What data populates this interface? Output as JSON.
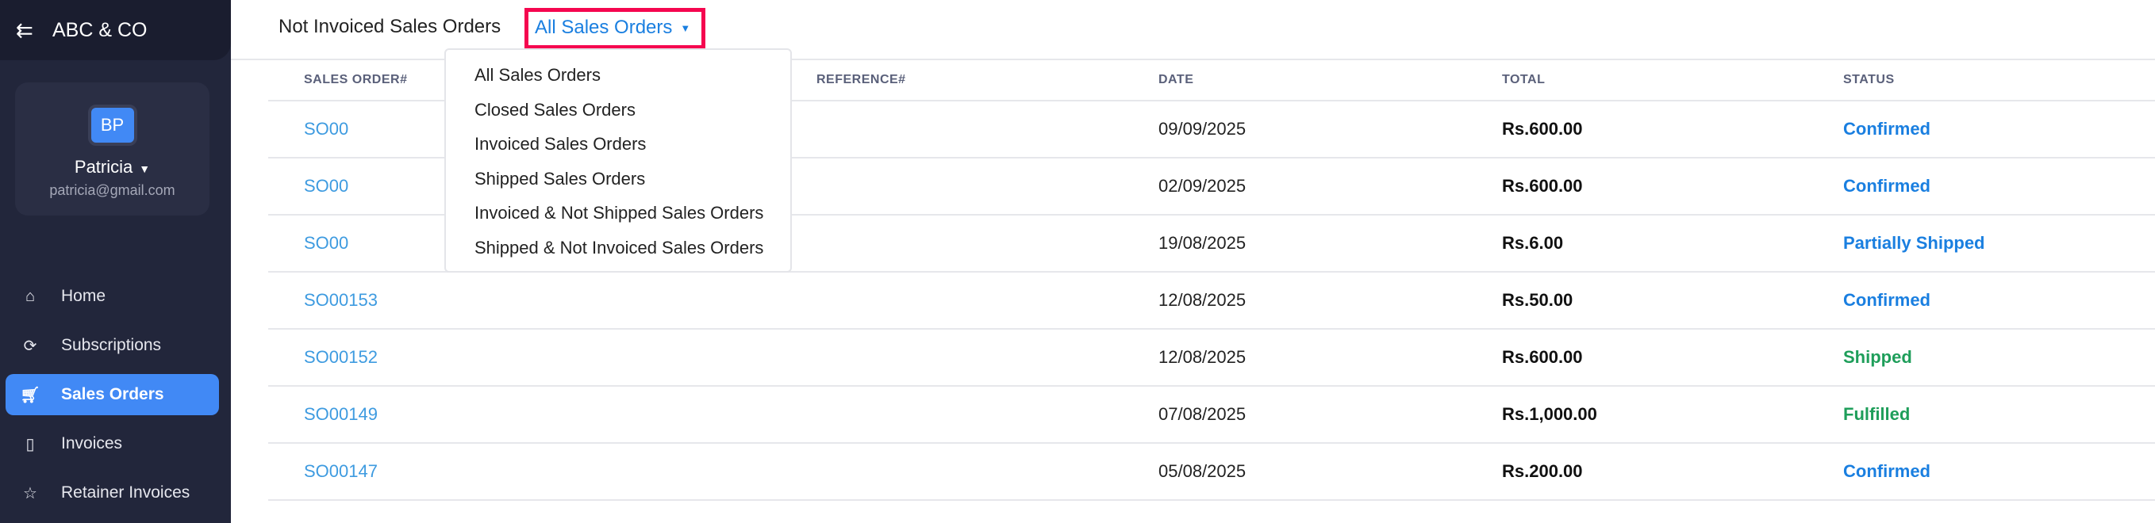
{
  "sidebar": {
    "brand": "ABC & CO",
    "profile": {
      "initials": "BP",
      "name": "Patricia",
      "email": "patricia@gmail.com"
    },
    "items": [
      {
        "label": "Home",
        "icon": "home-icon"
      },
      {
        "label": "Subscriptions",
        "icon": "subscriptions-icon"
      },
      {
        "label": "Sales Orders",
        "icon": "cart-icon",
        "active": true
      },
      {
        "label": "Invoices",
        "icon": "invoice-icon"
      },
      {
        "label": "Retainer Invoices",
        "icon": "retainer-invoice-icon"
      }
    ]
  },
  "header": {
    "title": "Not Invoiced Sales Orders",
    "filter": "All Sales Orders"
  },
  "menu": [
    "All Sales Orders",
    "Closed Sales Orders",
    "Invoiced Sales Orders",
    "Shipped Sales Orders",
    "Invoiced & Not Shipped Sales Orders",
    "Shipped & Not Invoiced Sales Orders"
  ],
  "table": {
    "columns": [
      "SALES ORDER#",
      "REFERENCE#",
      "DATE",
      "TOTAL",
      "STATUS"
    ],
    "rows": [
      {
        "so": "SO00",
        "ref": "",
        "date": "09/09/2025",
        "total": "Rs.600.00",
        "status": "Confirmed"
      },
      {
        "so": "SO00",
        "ref": "",
        "date": "02/09/2025",
        "total": "Rs.600.00",
        "status": "Confirmed"
      },
      {
        "so": "SO00",
        "ref": "",
        "date": "19/08/2025",
        "total": "Rs.6.00",
        "status": "Partially Shipped"
      },
      {
        "so": "SO00153",
        "ref": "",
        "date": "12/08/2025",
        "total": "Rs.50.00",
        "status": "Confirmed"
      },
      {
        "so": "SO00152",
        "ref": "",
        "date": "12/08/2025",
        "total": "Rs.600.00",
        "status": "Shipped"
      },
      {
        "so": "SO00149",
        "ref": "",
        "date": "07/08/2025",
        "total": "Rs.1,000.00",
        "status": "Fulfilled"
      },
      {
        "so": "SO00147",
        "ref": "",
        "date": "05/08/2025",
        "total": "Rs.200.00",
        "status": "Confirmed"
      }
    ]
  },
  "colors": {
    "accent": "#4189f5",
    "highlight": "#f5064f",
    "status_blue": "#1a7fe0",
    "status_green": "#1e9e5a"
  }
}
